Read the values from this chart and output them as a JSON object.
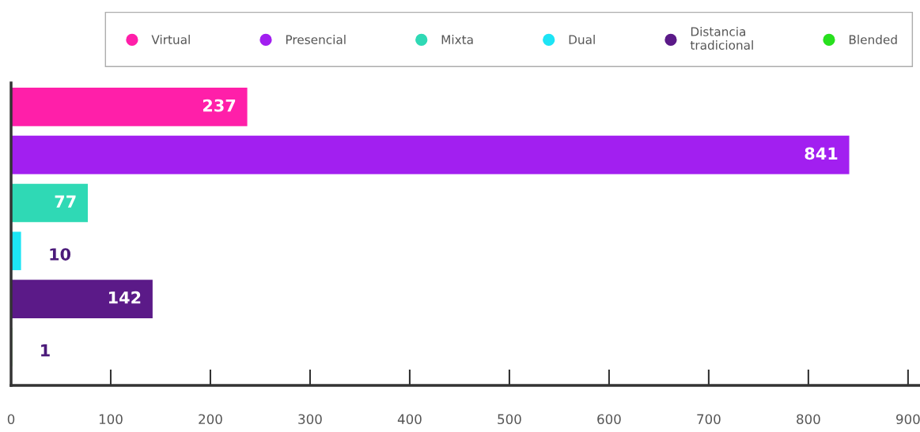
{
  "chart_data": {
    "type": "bar",
    "orientation": "horizontal",
    "categories": [
      null,
      null,
      null,
      null,
      null,
      null
    ],
    "series": [
      {
        "name": "Virtual",
        "color": "#ff1fa9",
        "values": [
          237,
          null,
          null,
          null,
          null,
          null
        ]
      },
      {
        "name": "Presencial",
        "color": "#a21ff0",
        "values": [
          null,
          841,
          null,
          null,
          null,
          null
        ]
      },
      {
        "name": "Mixta",
        "color": "#2fd9b5",
        "values": [
          null,
          null,
          77,
          null,
          null,
          null
        ]
      },
      {
        "name": "Dual",
        "color": "#1de4f5",
        "values": [
          null,
          null,
          null,
          10,
          null,
          null
        ]
      },
      {
        "name": "Distancia\ntradicional",
        "color": "#5b1a88",
        "values": [
          null,
          null,
          null,
          null,
          142,
          null
        ]
      },
      {
        "name": "Blended",
        "color": "#28e01e",
        "values": [
          null,
          null,
          null,
          null,
          null,
          1
        ]
      }
    ],
    "xlim": [
      0,
      912
    ],
    "xticks": [
      0,
      100,
      200,
      300,
      400,
      500,
      600,
      700,
      800,
      900
    ],
    "data_labels": true,
    "legend": "top",
    "grid": false
  }
}
